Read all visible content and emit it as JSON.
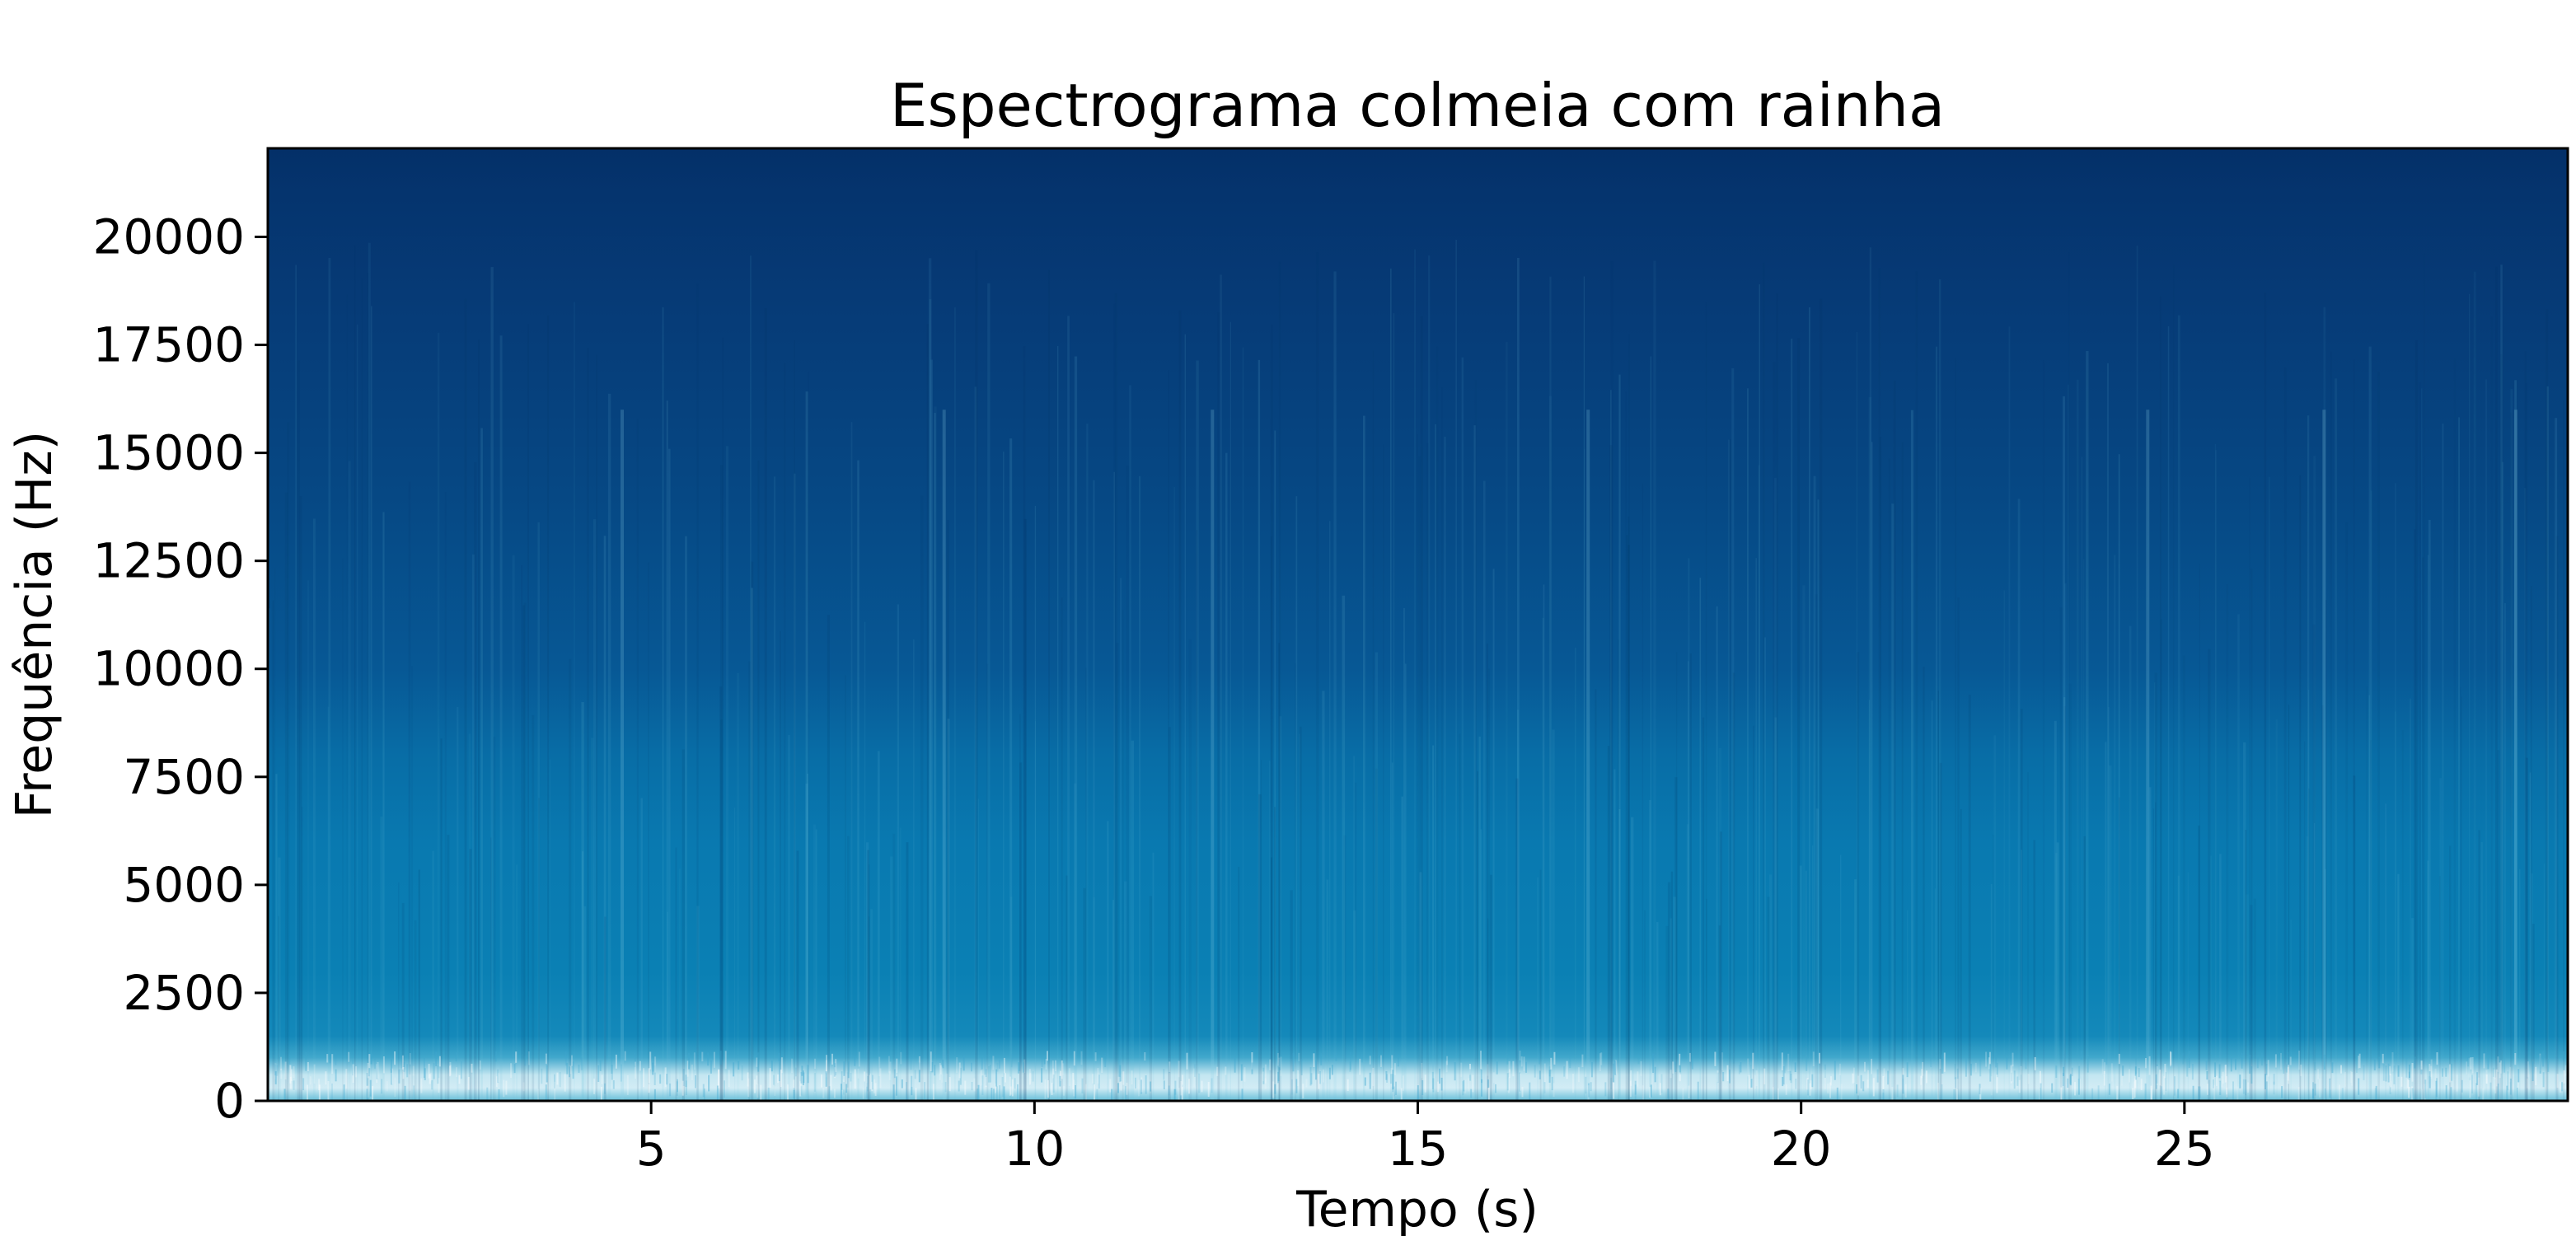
{
  "chart_data": {
    "type": "heatmap",
    "title": "Espectrograma colmeia com rainha",
    "xlabel": "Tempo (s)",
    "ylabel": "Frequência (Hz)",
    "xlim": [
      0,
      30
    ],
    "ylim": [
      0,
      22050
    ],
    "x_ticks": [
      5,
      10,
      15,
      20,
      25
    ],
    "x_tick_labels": [
      "5",
      "10",
      "15",
      "20",
      "25"
    ],
    "y_ticks": [
      0,
      2500,
      5000,
      7500,
      10000,
      12500,
      15000,
      17500,
      20000
    ],
    "y_tick_labels": [
      "0",
      "2500",
      "5000",
      "7500",
      "10000",
      "12500",
      "15000",
      "17500",
      "20000"
    ],
    "grid": false,
    "colormap": "Blues_r-like (dark navy = low intensity, white = high intensity)",
    "colors": {
      "high": "#e9f6fb",
      "mid_high": "#5cbad6",
      "mid": "#0a82b6",
      "mid_low": "#07629e",
      "low": "#063e7b",
      "lowest": "#042c63"
    },
    "intensity_profile": [
      {
        "freq_hz": 0,
        "intensity": 0.72
      },
      {
        "freq_hz": 300,
        "intensity": 0.95
      },
      {
        "freq_hz": 600,
        "intensity": 0.92
      },
      {
        "freq_hz": 1000,
        "intensity": 0.62
      },
      {
        "freq_hz": 1500,
        "intensity": 0.48
      },
      {
        "freq_hz": 3000,
        "intensity": 0.44
      },
      {
        "freq_hz": 6000,
        "intensity": 0.41
      },
      {
        "freq_hz": 8000,
        "intensity": 0.35
      },
      {
        "freq_hz": 10000,
        "intensity": 0.26
      },
      {
        "freq_hz": 14000,
        "intensity": 0.19
      },
      {
        "freq_hz": 18000,
        "intensity": 0.13
      },
      {
        "freq_hz": 21000,
        "intensity": 0.07
      },
      {
        "freq_hz": 22050,
        "intensity": 0.03
      }
    ],
    "notable_streaks_s": [
      4.6,
      8.8,
      12.3,
      17.2,
      24.5,
      26.8,
      29.3
    ]
  }
}
